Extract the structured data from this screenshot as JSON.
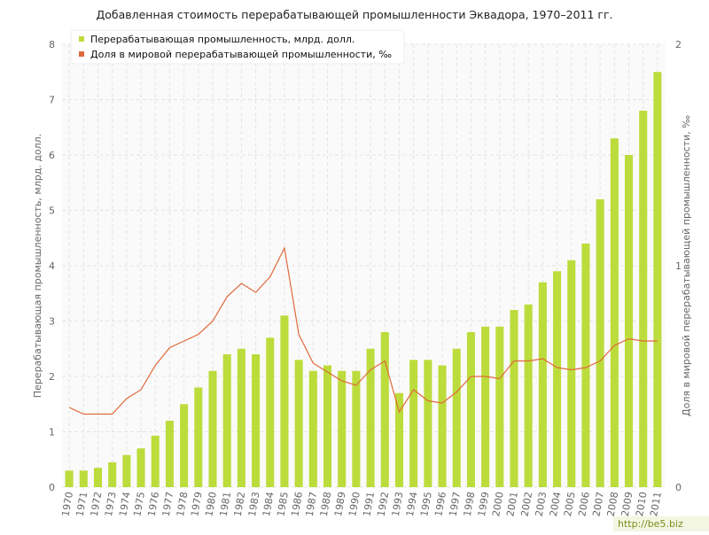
{
  "chart_data": {
    "type": "bar_line",
    "title": "Добавленная стоимость перерабатывающей промышленности Эквадора, 1970–2011 гг.",
    "y_label": "Перерабатывающая промышленность, млрд. долл.",
    "y2_label": "Доля в мировой перерабатывающей промышленности, ‰",
    "categories": [
      "1970",
      "1971",
      "1972",
      "1973",
      "1974",
      "1975",
      "1976",
      "1977",
      "1978",
      "1979",
      "1980",
      "1981",
      "1982",
      "1983",
      "1984",
      "1985",
      "1986",
      "1987",
      "1988",
      "1989",
      "1990",
      "1991",
      "1992",
      "1993",
      "1994",
      "1995",
      "1996",
      "1997",
      "1998",
      "1999",
      "2000",
      "2001",
      "2002",
      "2003",
      "2004",
      "2005",
      "2006",
      "2007",
      "2008",
      "2009",
      "2010",
      "2011"
    ],
    "series": [
      {
        "name": "Перерабатывающая промышленность, млрд. долл.",
        "color": "#bcdc3c",
        "type": "bar",
        "values": [
          0.3,
          0.3,
          0.35,
          0.45,
          0.58,
          0.7,
          0.93,
          1.2,
          1.5,
          1.8,
          2.1,
          2.4,
          2.5,
          2.4,
          2.7,
          3.1,
          2.3,
          2.1,
          2.2,
          2.1,
          2.1,
          2.5,
          2.8,
          1.7,
          2.3,
          2.3,
          2.2,
          2.5,
          2.8,
          2.9,
          2.9,
          3.2,
          3.3,
          3.7,
          3.9,
          4.1,
          4.4,
          5.2,
          6.3,
          6.0,
          6.8,
          7.5
        ]
      },
      {
        "name": "Доля в мировой перерабатывающей промышленности, ‰",
        "color": "#e0693a",
        "type": "line",
        "axis": "y2",
        "values": [
          0.36,
          0.33,
          0.33,
          0.33,
          0.4,
          0.44,
          0.55,
          0.63,
          0.66,
          0.69,
          0.75,
          0.86,
          0.92,
          0.88,
          0.95,
          1.08,
          0.69,
          0.56,
          0.52,
          0.48,
          0.46,
          0.53,
          0.57,
          0.34,
          0.44,
          0.39,
          0.38,
          0.43,
          0.5,
          0.5,
          0.49,
          0.57,
          0.57,
          0.58,
          0.54,
          0.53,
          0.54,
          0.57,
          0.64,
          0.67,
          0.66,
          0.66
        ]
      }
    ],
    "ylim": [
      0,
      8
    ],
    "yticks": [
      0,
      1,
      2,
      3,
      4,
      5,
      6,
      7,
      8
    ],
    "y2lim": [
      0,
      2
    ],
    "y2ticks": [
      0,
      1,
      2
    ],
    "grid": true,
    "legend": "top-left",
    "watermark": "http://be5.biz"
  }
}
